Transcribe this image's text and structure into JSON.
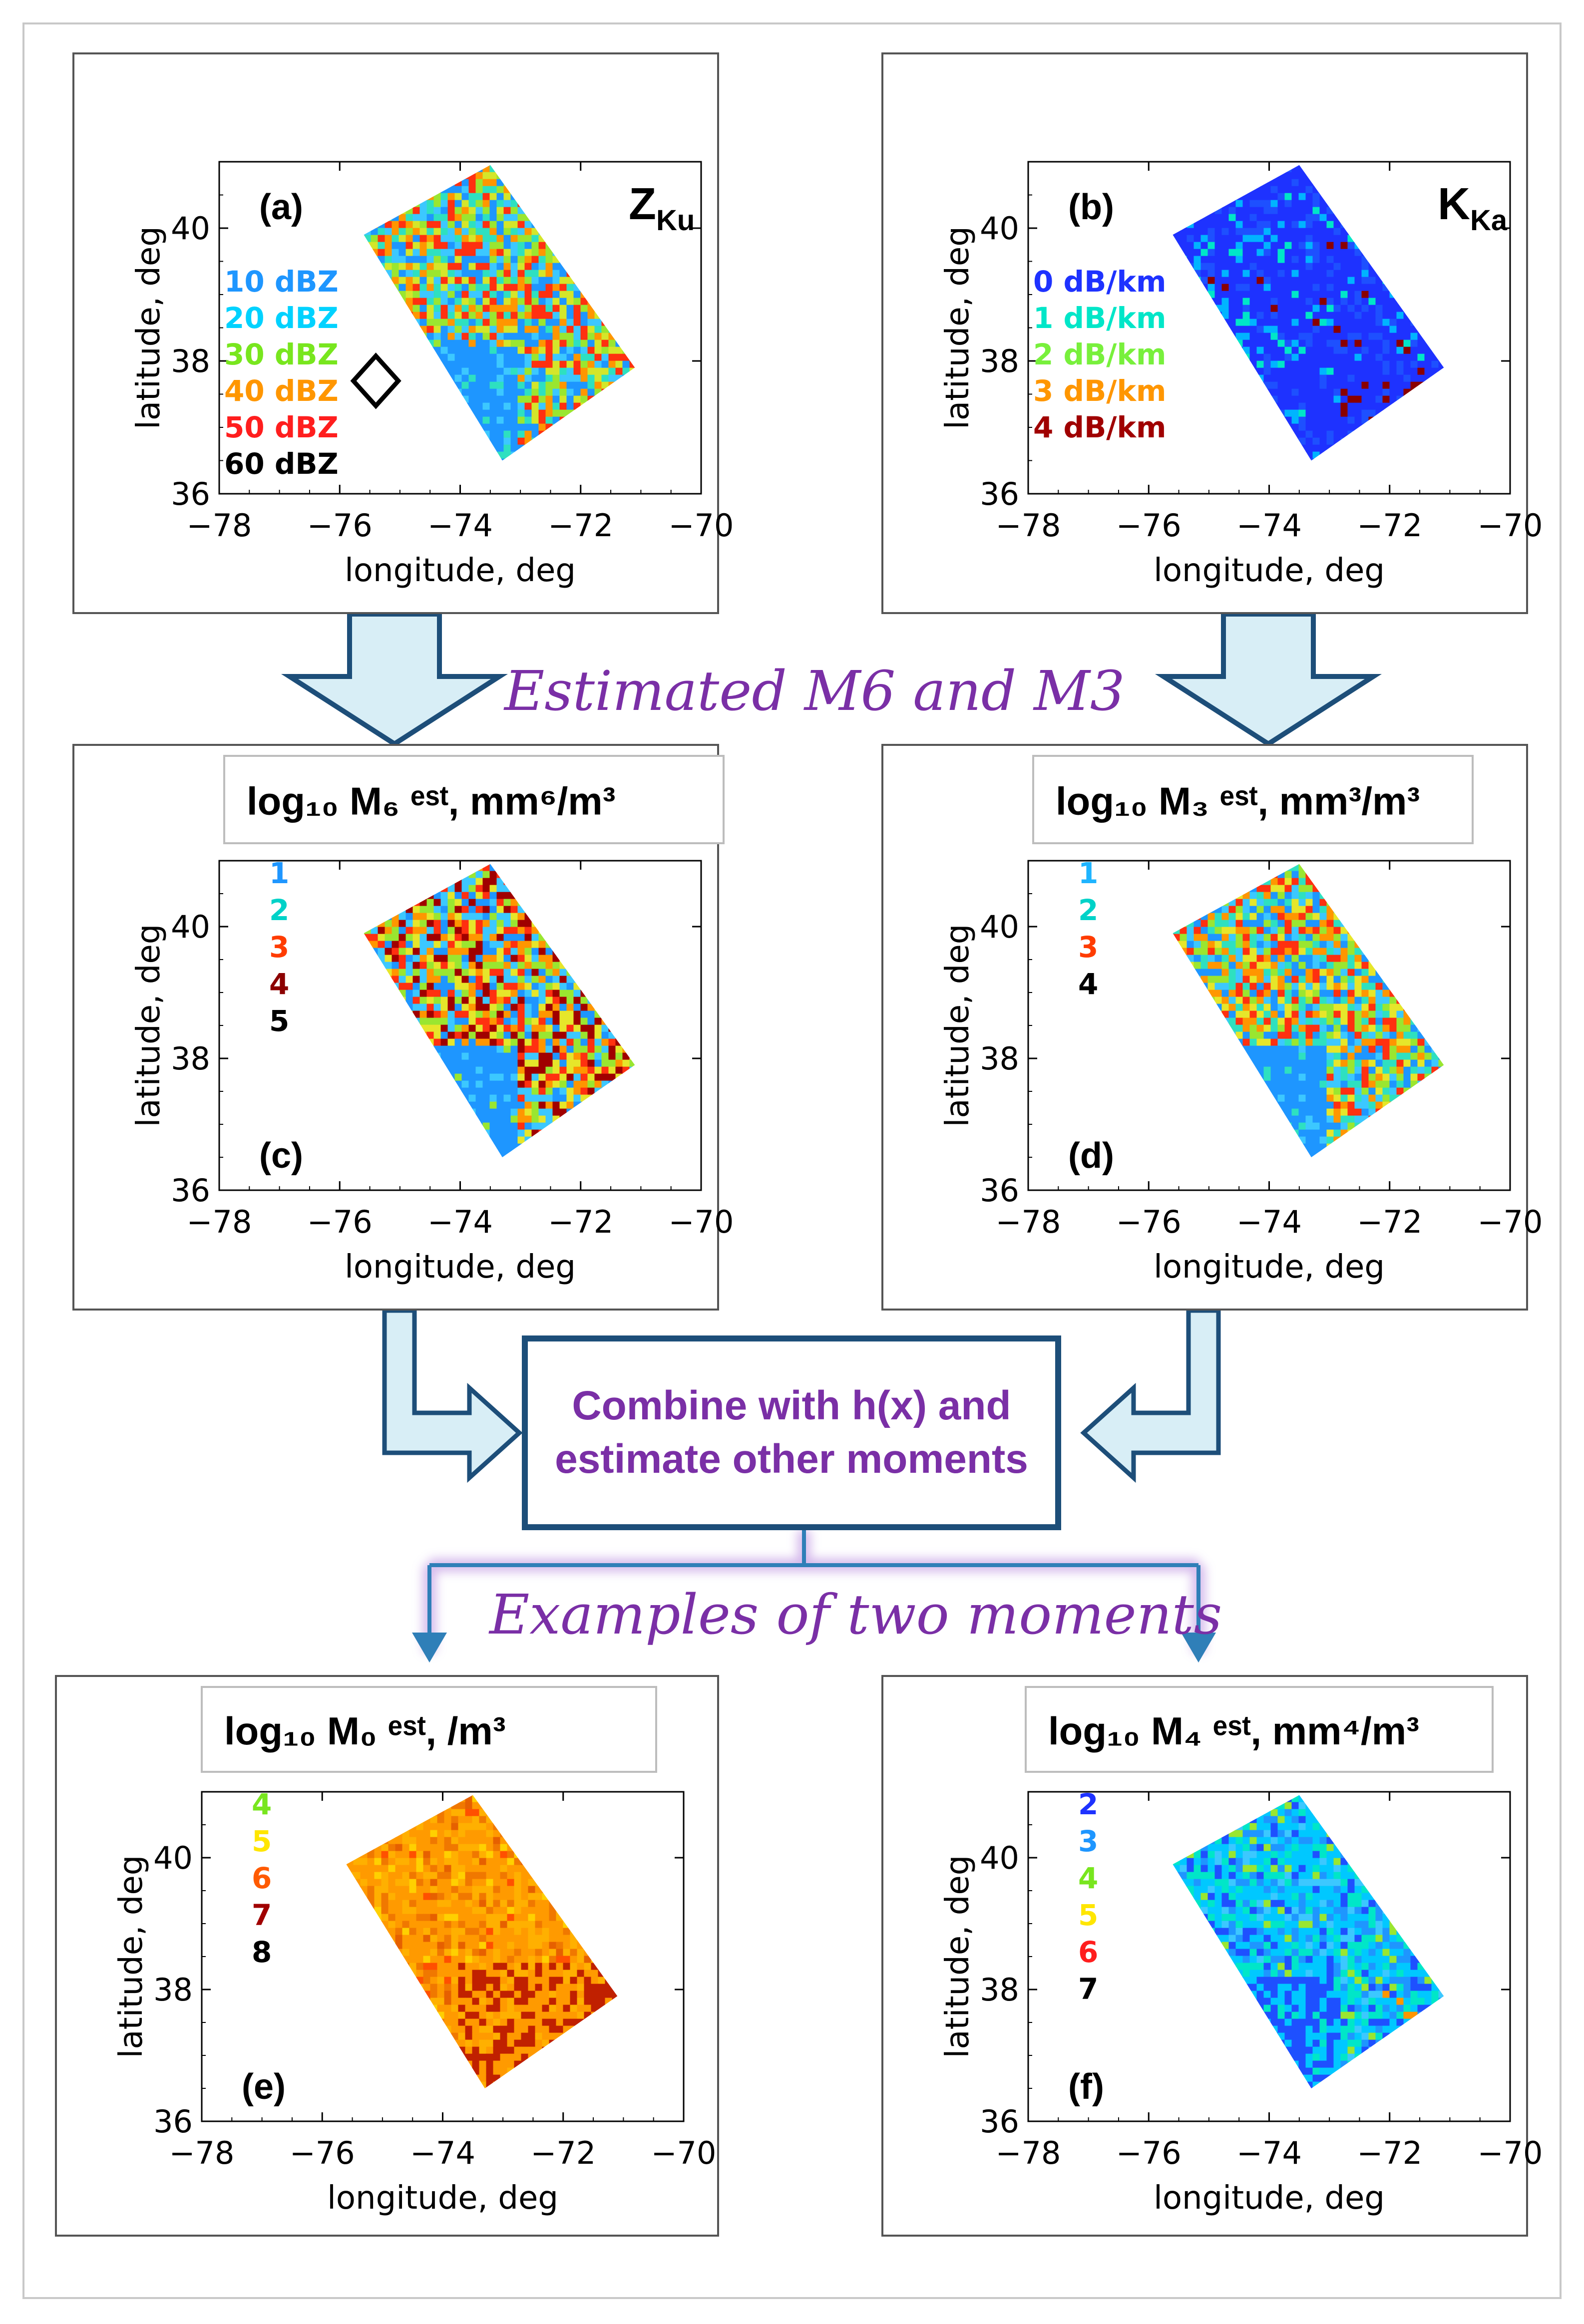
{
  "flow": {
    "estimated_title": "Estimated M6 and M3",
    "combine_line1": "Combine with h(x) and",
    "combine_line2": "estimate other moments",
    "examples_title": "Examples of two moments"
  },
  "axes": {
    "xlabel": "longitude, deg",
    "ylabel": "latitude, deg",
    "xticks": [
      "−78",
      "−76",
      "−74",
      "−72",
      "−70"
    ],
    "yticks": [
      "36",
      "38",
      "40"
    ]
  },
  "panels": [
    {
      "id": "a",
      "label": "(a)",
      "title_main": "Z",
      "title_sub": "Ku",
      "legend": [
        {
          "text": "10  dBZ",
          "color": "#1e96ff"
        },
        {
          "text": "20  dBZ",
          "color": "#00d2ff"
        },
        {
          "text": "30  dBZ",
          "color": "#78e61e"
        },
        {
          "text": "40  dBZ",
          "color": "#ff9600"
        },
        {
          "text": "50  dBZ",
          "color": "#ff1e1e"
        },
        {
          "text": "60  dBZ",
          "color": "#000000"
        }
      ],
      "palette": [
        "#1e96ff",
        "#3cc8ff",
        "#2ee0c0",
        "#9ae630",
        "#d4e62a",
        "#ff9600",
        "#ff3010"
      ]
    },
    {
      "id": "b",
      "label": "(b)",
      "title_main": "K",
      "title_sub": "Ka",
      "legend": [
        {
          "text": "0  dB/km",
          "color": "#1e32ff"
        },
        {
          "text": "1  dB/km",
          "color": "#00e6c8"
        },
        {
          "text": "2  dB/km",
          "color": "#78f03c"
        },
        {
          "text": "3  dB/km",
          "color": "#ff9600"
        },
        {
          "text": "4  dB/km",
          "color": "#a00000"
        }
      ],
      "palette": [
        "#1e32ff",
        "#1e50ff",
        "#2060ff",
        "#1e32ff",
        "#00b4ff",
        "#00e6c8",
        "#8a0000"
      ]
    },
    {
      "id": "c",
      "label": "(c)",
      "title_text": "log₁₀ M₆ ᵉˢᵗ, mm⁶/m³",
      "legend": [
        {
          "text": "1",
          "color": "#1e96ff"
        },
        {
          "text": "2",
          "color": "#00d2c8"
        },
        {
          "text": "3",
          "color": "#ff3c00"
        },
        {
          "text": "4",
          "color": "#8c0000"
        },
        {
          "text": "5",
          "color": "#000000"
        }
      ],
      "palette": [
        "#1e96ff",
        "#3cc8ff",
        "#9ae630",
        "#e6e62a",
        "#ff9600",
        "#ff3010",
        "#a00000"
      ]
    },
    {
      "id": "d",
      "label": "(d)",
      "title_text": "log₁₀ M₃ ᵉˢᵗ, mm³/m³",
      "legend": [
        {
          "text": "1",
          "color": "#1eb4ff"
        },
        {
          "text": "2",
          "color": "#00d2c8"
        },
        {
          "text": "3",
          "color": "#ff3c00"
        },
        {
          "text": "4",
          "color": "#000000"
        }
      ],
      "palette": [
        "#1e96ff",
        "#3cc8ff",
        "#2ee0c0",
        "#9ae630",
        "#e6e62a",
        "#ff9600",
        "#ff3010"
      ]
    },
    {
      "id": "e",
      "label": "(e)",
      "title_text": "log₁₀ M₀ ᵉˢᵗ, /m³",
      "legend": [
        {
          "text": "4",
          "color": "#78e61e"
        },
        {
          "text": "5",
          "color": "#ffe600"
        },
        {
          "text": "6",
          "color": "#ff5a00"
        },
        {
          "text": "7",
          "color": "#a00000"
        },
        {
          "text": "8",
          "color": "#000000"
        }
      ],
      "palette": [
        "#ff9a00",
        "#ffb000",
        "#f07800",
        "#ffd000",
        "#e66000",
        "#ff5000",
        "#c02000"
      ]
    },
    {
      "id": "f",
      "label": "(f)",
      "title_text": "log₁₀ M₄ ᵉˢᵗ, mm⁴/m³",
      "legend": [
        {
          "text": "2",
          "color": "#1e32ff"
        },
        {
          "text": "3",
          "color": "#1e96ff"
        },
        {
          "text": "4",
          "color": "#78e61e"
        },
        {
          "text": "5",
          "color": "#ffe600"
        },
        {
          "text": "6",
          "color": "#ff1e1e"
        },
        {
          "text": "7",
          "color": "#000000"
        }
      ],
      "palette": [
        "#1e50ff",
        "#1e96ff",
        "#00c8ff",
        "#00e6c8",
        "#3cc8ff",
        "#9ae630",
        "#ff9600"
      ]
    }
  ]
}
